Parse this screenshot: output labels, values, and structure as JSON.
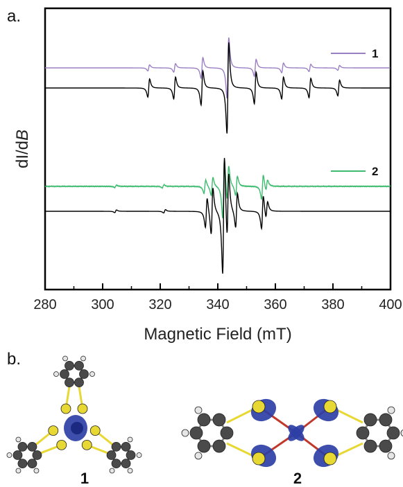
{
  "panel_labels": {
    "a": "a.",
    "b": "b."
  },
  "colors": {
    "series_1": "#9b7fc4",
    "series_2": "#3dbb6e",
    "simulated": "#000000",
    "spin_density": "#2c3fa6",
    "sulfur": "#e8d834",
    "carbon": "#4a4a4a",
    "hydrogen": "#e6e6e6"
  },
  "chart_data": {
    "type": "line",
    "xlabel": "Magnetic Field (mT)",
    "ylabel_prefix": "dI/d",
    "ylabel_italic": "B",
    "xlim": [
      280,
      400
    ],
    "xticks": [
      "280",
      "300",
      "320",
      "360",
      "340",
      "380",
      "400"
    ],
    "xtick_values": [
      280,
      300,
      320,
      360,
      340,
      380,
      400
    ],
    "y_ticks_shown": false,
    "grid": false,
    "legend_position": "right",
    "series": [
      {
        "name": "1",
        "kind": "experimental",
        "color": "#9b7fc4",
        "offset": 4,
        "peaks": [
          [
            316,
            0.1
          ],
          [
            325,
            0.14
          ],
          [
            334.5,
            0.34
          ],
          [
            343.5,
            1.0
          ],
          [
            353,
            0.28
          ],
          [
            362.5,
            0.16
          ],
          [
            372,
            0.12
          ],
          [
            382,
            0.08
          ]
        ]
      },
      {
        "kind": "simulated",
        "color": "#000000",
        "offset": 3,
        "peaks": [
          [
            316,
            0.3
          ],
          [
            325,
            0.36
          ],
          [
            334.5,
            0.56
          ],
          [
            343.5,
            1.5
          ],
          [
            353,
            0.52
          ],
          [
            362.5,
            0.36
          ],
          [
            372,
            0.32
          ],
          [
            382,
            0.26
          ]
        ]
      },
      {
        "name": "2",
        "kind": "experimental",
        "color": "#3dbb6e",
        "offset": 1.5,
        "peaks": [
          [
            304.5,
            0.04
          ],
          [
            321,
            0.05
          ],
          [
            335.5,
            0.22
          ],
          [
            338,
            0.3
          ],
          [
            342,
            1.0
          ],
          [
            343.5,
            0.6
          ],
          [
            346.5,
            0.32
          ],
          [
            355.5,
            0.4
          ],
          [
            357,
            0.18
          ]
        ]
      },
      {
        "kind": "simulated",
        "color": "#000000",
        "offset": 0.5,
        "peaks": [
          [
            304.5,
            0.04
          ],
          [
            321.5,
            0.05
          ],
          [
            336,
            0.45
          ],
          [
            338,
            0.7
          ],
          [
            342,
            1.8
          ],
          [
            343.5,
            1.0
          ],
          [
            346.5,
            0.52
          ],
          [
            355.5,
            0.5
          ],
          [
            357,
            0.25
          ]
        ]
      }
    ]
  },
  "molecules": [
    {
      "label": "1"
    },
    {
      "label": "2"
    }
  ]
}
